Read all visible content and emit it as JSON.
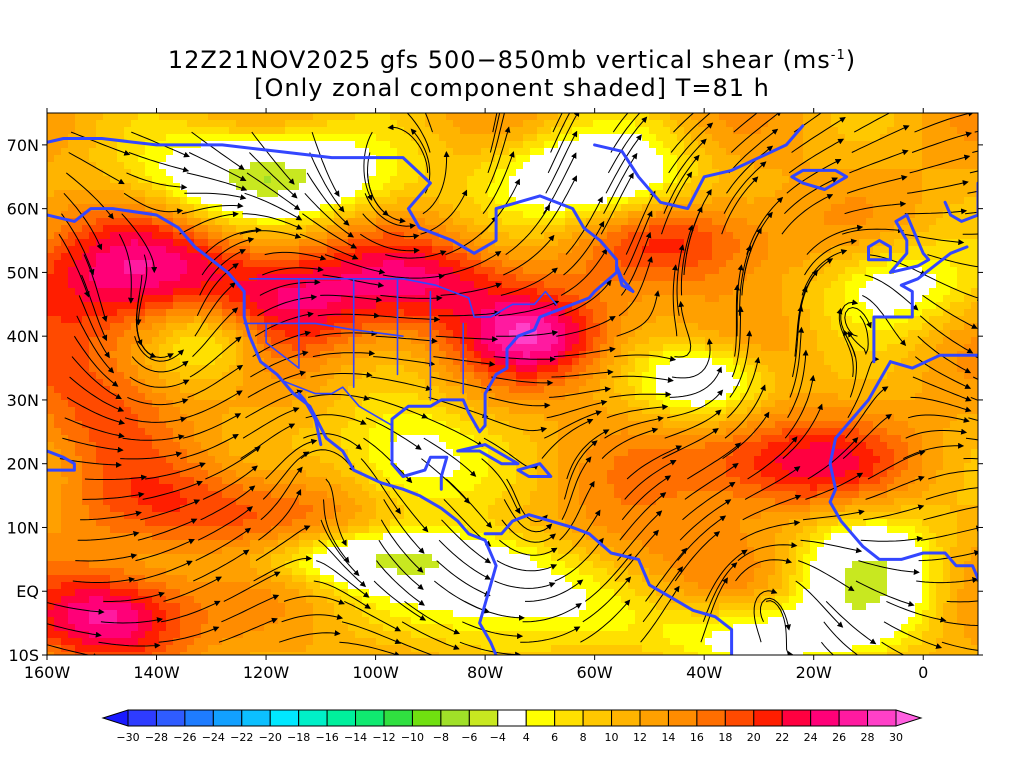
{
  "title": {
    "line1_prefix": "12Z21NOV2025 gfs 500−850mb vertical shear (ms",
    "line1_exp": "-1",
    "line1_suffix": ")",
    "line2": "[Only zonal component shaded] T=81 h"
  },
  "map": {
    "lon_range": [
      -160,
      10
    ],
    "lat_range": [
      -10,
      75
    ],
    "lon_tick_labels": [
      "160W",
      "140W",
      "120W",
      "100W",
      "80W",
      "60W",
      "40W",
      "20W",
      "0"
    ],
    "lat_tick_labels": [
      "10S",
      "EQ",
      "10N",
      "20N",
      "30N",
      "40N",
      "50N",
      "60N",
      "70N"
    ],
    "field": "zonal component of 500-850mb vertical shear",
    "units": "ms-1",
    "coastline_color": "#3346ff",
    "streamline_color": "#000000"
  },
  "colorbar": {
    "tick_labels": [
      "-30",
      "-28",
      "-26",
      "-24",
      "-22",
      "-20",
      "-18",
      "-16",
      "-14",
      "-12",
      "-10",
      "-8",
      "-6",
      "-4",
      "4",
      "6",
      "8",
      "10",
      "12",
      "14",
      "16",
      "18",
      "20",
      "22",
      "24",
      "26",
      "28",
      "30"
    ],
    "colors": [
      "#1a1aff",
      "#2e3cff",
      "#2f5cff",
      "#1e7cff",
      "#12a0ff",
      "#0cc0ff",
      "#00e8ff",
      "#00f0c8",
      "#00f09c",
      "#10ea70",
      "#30e040",
      "#70e010",
      "#a0e028",
      "#c8e820",
      "#ffffff",
      "#ffff00",
      "#ffe000",
      "#ffc800",
      "#ffb400",
      "#ffa000",
      "#ff8c00",
      "#ff6e00",
      "#ff4a00",
      "#ff1e00",
      "#ff0040",
      "#ff0078",
      "#ff1aa0",
      "#ff40c8",
      "#ff60e0"
    ]
  }
}
